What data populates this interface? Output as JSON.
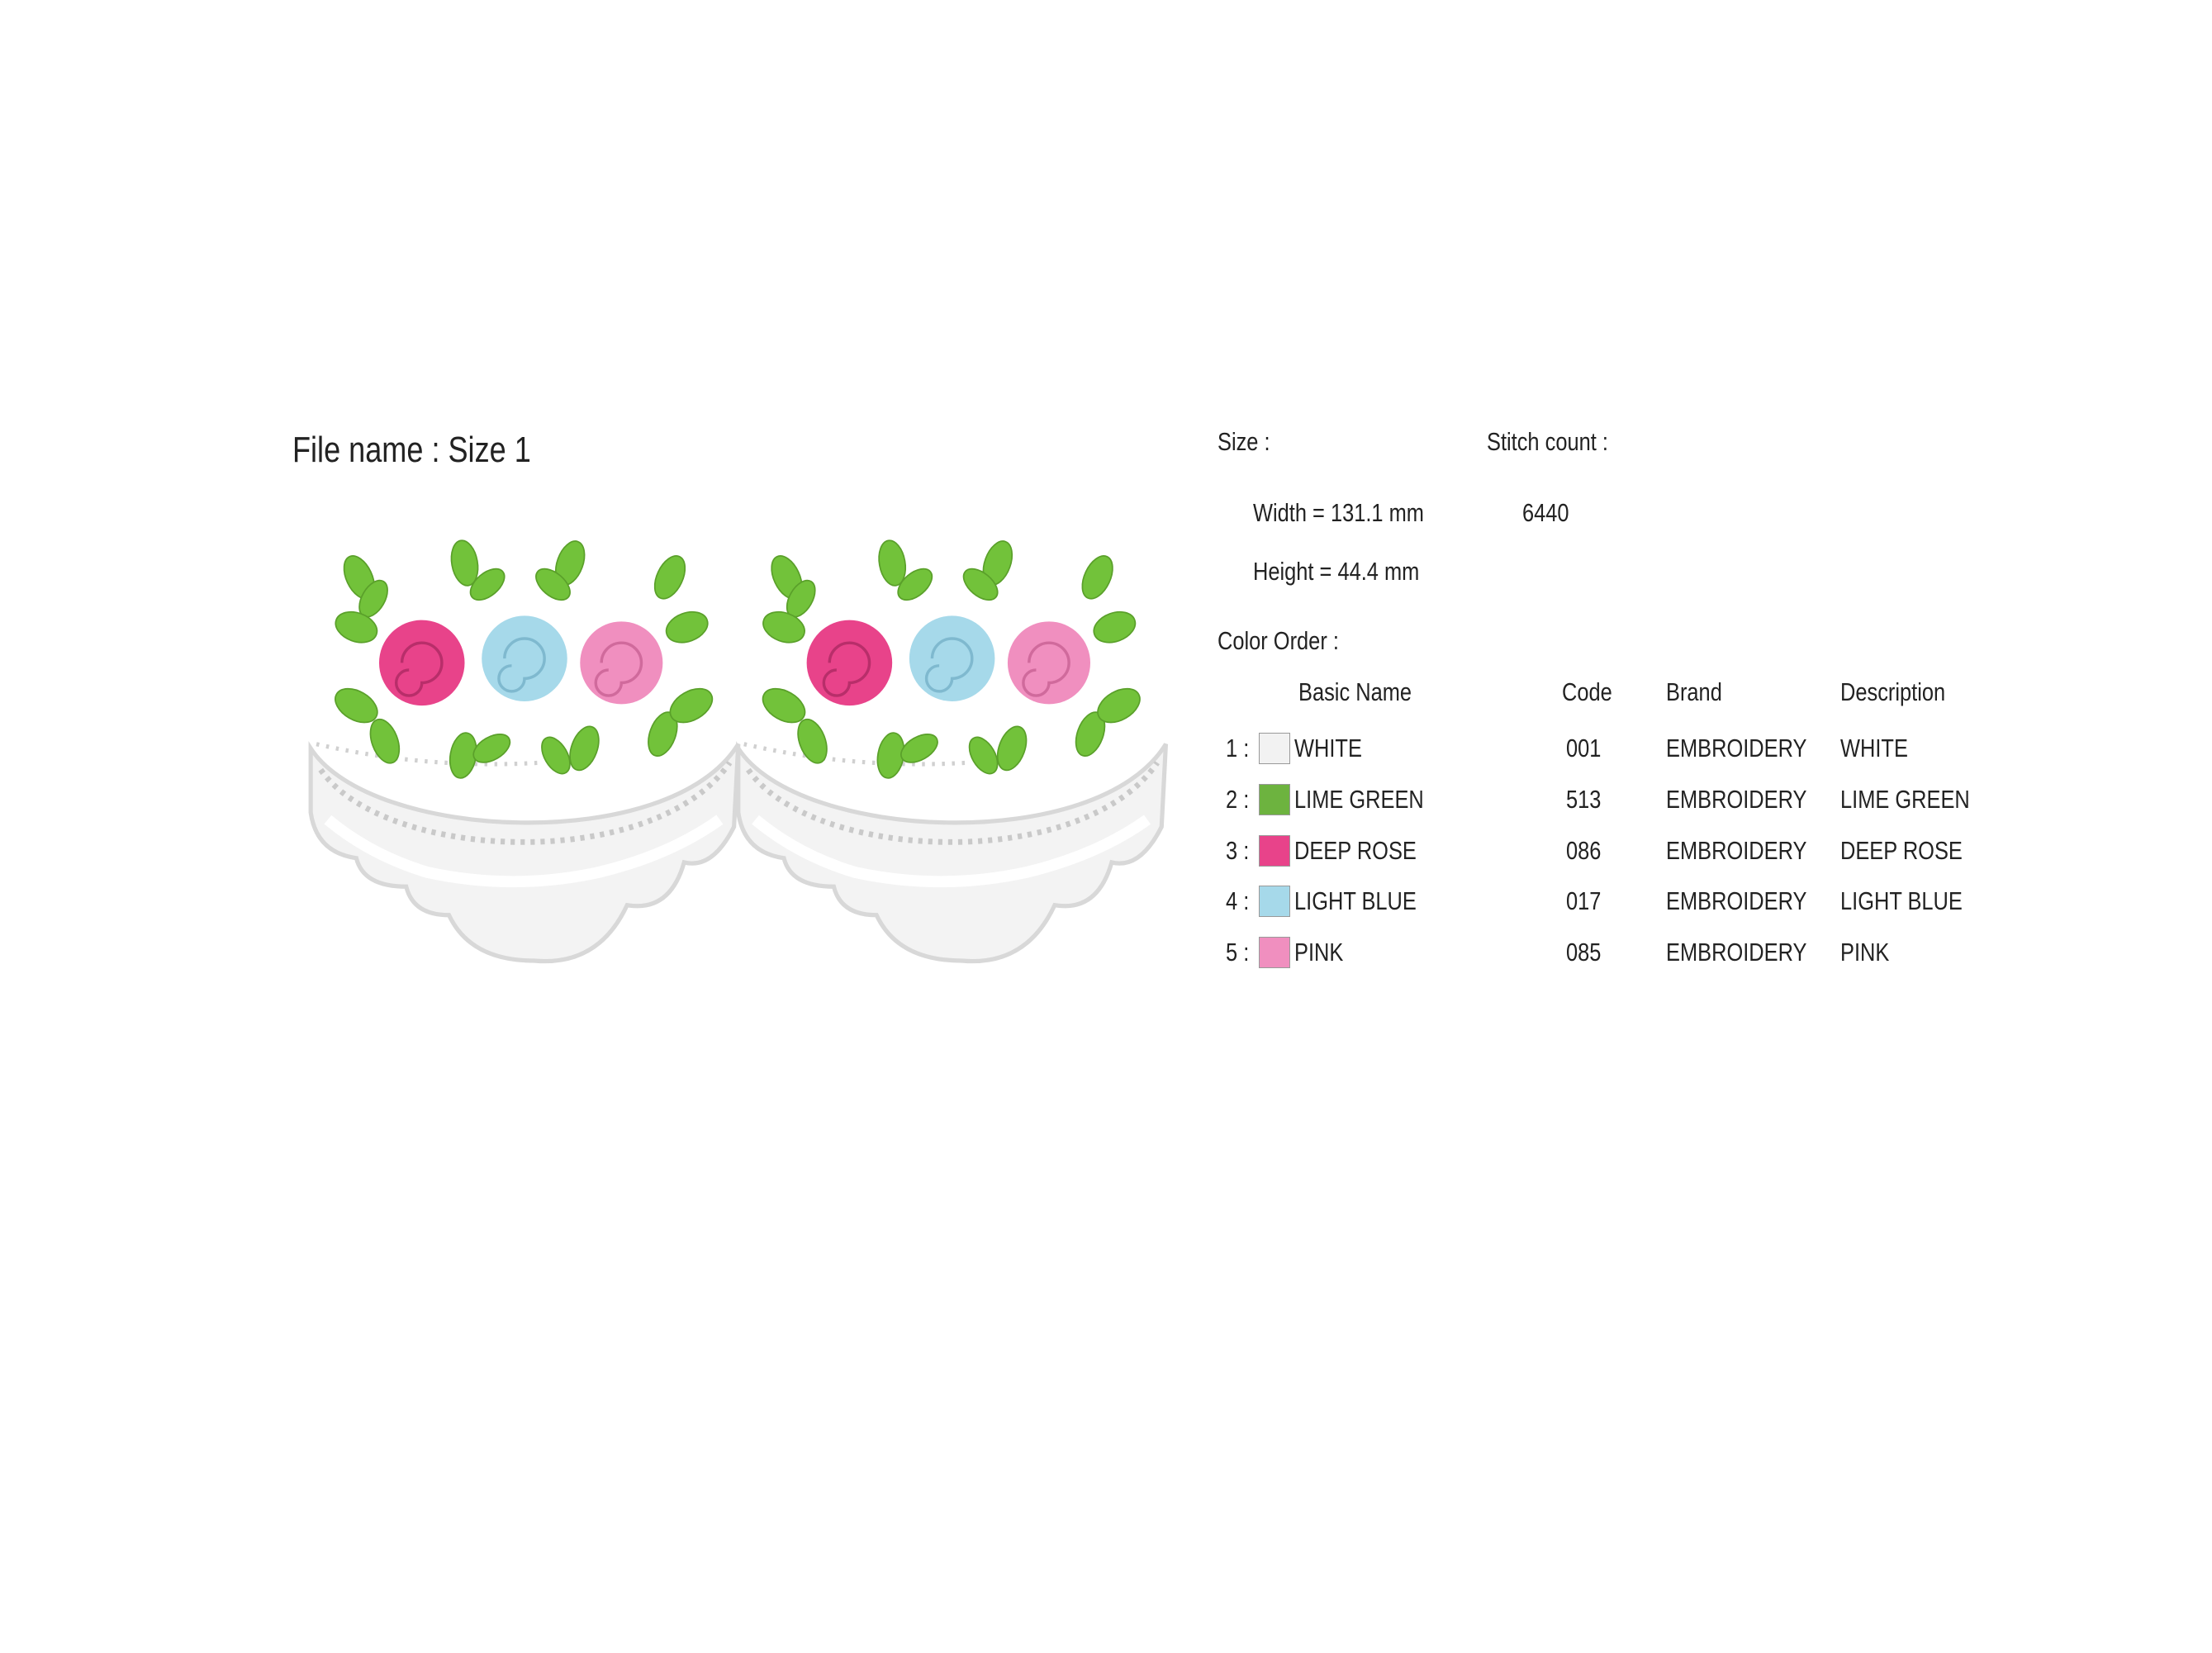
{
  "header": {
    "title": "File name : Size 1"
  },
  "size": {
    "label": "Size :",
    "width": "Width  = 131.1 mm",
    "height": "Height = 44.4 mm"
  },
  "stitch": {
    "label": "Stitch count :",
    "value": "6440"
  },
  "color_order": {
    "label": "Color Order :",
    "columns": [
      "Basic Name",
      "Code",
      "Brand",
      "Description"
    ],
    "rows": [
      {
        "index": "1 :",
        "color": "#f2f2f2",
        "name": "WHITE",
        "code": "001",
        "brand": "EMBROIDERY",
        "description": "WHITE"
      },
      {
        "index": "2 :",
        "color": "#6db33f",
        "name": "LIME GREEN",
        "code": "513",
        "brand": "EMBROIDERY",
        "description": "LIME GREEN"
      },
      {
        "index": "3 :",
        "color": "#e8438a",
        "name": "DEEP ROSE",
        "code": "086",
        "brand": "EMBROIDERY",
        "description": "DEEP ROSE"
      },
      {
        "index": "4 :",
        "color": "#a6d9ea",
        "name": "LIGHT BLUE",
        "code": "017",
        "brand": "EMBROIDERY",
        "description": "LIGHT BLUE"
      },
      {
        "index": "5 :",
        "color": "#f08fbf",
        "name": "PINK",
        "code": "085",
        "brand": "EMBROIDERY",
        "description": "PINK"
      }
    ]
  }
}
